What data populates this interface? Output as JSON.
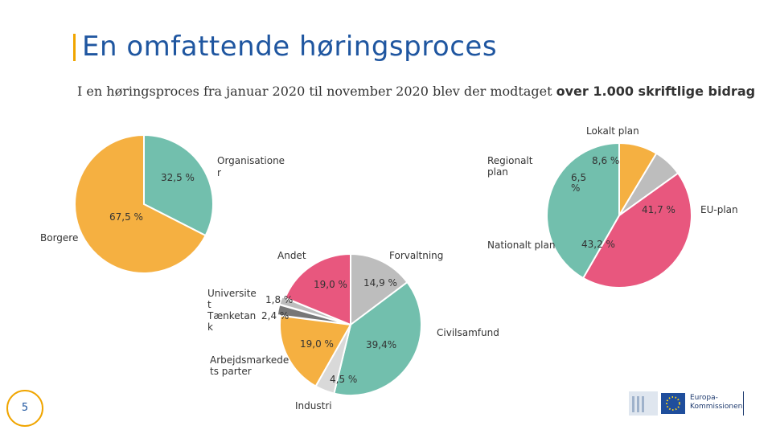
{
  "title": "En omfattende høringsproces",
  "subtitle": {
    "prefix": "I en høringsproces fra januar 2020 til november 2020 blev der modtaget ",
    "bold": "over 1.000 skriftlige bidrag"
  },
  "page_number": "5",
  "logo_text": [
    "Europa-",
    "Kommissionen"
  ],
  "colors": {
    "accent": "#f0a500",
    "title": "#1f56a0",
    "teal": "#72bfad",
    "orange": "#f5b041",
    "pink": "#e8577e",
    "grey": "#bdbdbd",
    "dark": "#777777",
    "light": "#d9d9d9"
  },
  "chart_data": [
    {
      "type": "pie",
      "categories": [
        "Organisationer",
        "Borgere"
      ],
      "values": [
        32.5,
        67.5
      ],
      "value_labels": [
        "32,5 %",
        "67,5 %"
      ],
      "category_labels": [
        "Organisatione r",
        "Borgere"
      ],
      "colors": [
        "#72bfad",
        "#f5b041"
      ]
    },
    {
      "type": "pie",
      "categories": [
        "Lokalt plan",
        "Regionalt plan",
        "Nationalt plan",
        "EU-plan"
      ],
      "values": [
        8.6,
        6.5,
        43.2,
        41.7
      ],
      "value_labels": [
        "8,6 %",
        "6,5 %",
        "43,2 %",
        "41,7 %"
      ],
      "colors": [
        "#f5b041",
        "#bdbdbd",
        "#e8577e",
        "#72bfad"
      ]
    },
    {
      "type": "pie",
      "categories": [
        "Forvaltning",
        "Civilsamfund",
        "Industri",
        "Arbejdsmarkedets parter",
        "Tænketank",
        "Universitet",
        "Andet"
      ],
      "values": [
        14.9,
        39.4,
        4.5,
        19.0,
        2.4,
        1.8,
        19.0
      ],
      "value_labels": [
        "14,9 %",
        "39,4%",
        "4,5 %",
        "19,0 %",
        "2,4 %",
        "1,8 %",
        "19,0 %"
      ],
      "category_labels": [
        "Forvaltning",
        "Civilsamfund",
        "Industri",
        "Arbejdsmarkede ts parter",
        "Tænketan k",
        "Universite t",
        "Andet"
      ],
      "colors": [
        "#bdbdbd",
        "#72bfad",
        "#d9d9d9",
        "#f5b041",
        "#777777",
        "#bdbdbd",
        "#e8577e"
      ]
    }
  ]
}
